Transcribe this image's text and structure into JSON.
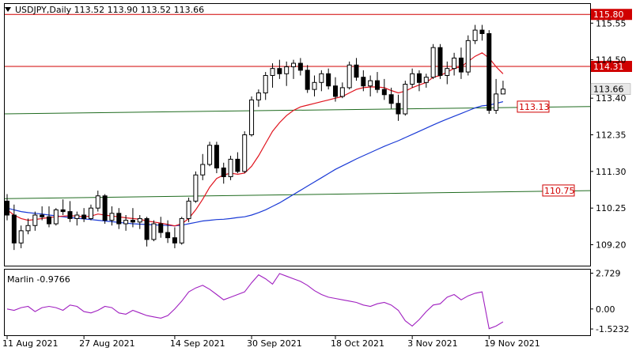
{
  "header": {
    "symbol_line": "USDJPY,Daily  113.52 113.90 113.52 113.66",
    "arrow_icon": "triangle-down-icon"
  },
  "colors": {
    "background": "#ffffff",
    "frame": "#000000",
    "red_line": "#d00000",
    "green_line": "#1f6b1f",
    "blue_ma": "#1a3ad6",
    "red_ma": "#e0141e",
    "oscillator": "#a020c0",
    "current_price_box": "#e8e8e8"
  },
  "chart_data": [
    {
      "type": "candlestick",
      "symbol": "USDJPY",
      "timeframe": "Daily",
      "ohlc_header": {
        "open": 113.52,
        "high": 113.9,
        "low": 113.52,
        "close": 113.66
      },
      "y_ticks": [
        "115.55",
        "114.50",
        "113.40",
        "112.35",
        "111.30",
        "110.25",
        "109.20"
      ],
      "x_ticks": [
        "11 Aug 2021",
        "27 Aug 2021",
        "14 Sep 2021",
        "30 Sep 2021",
        "18 Oct 2021",
        "3 Nov 2021",
        "19 Nov 2021"
      ],
      "ylim": [
        108.6,
        116.1
      ],
      "horizontal_levels": [
        {
          "value": 115.8,
          "label": "115.80"
        },
        {
          "value": 114.31,
          "label": "114.31"
        }
      ],
      "sloped_levels": [
        {
          "label": "113.13",
          "start": 112.95,
          "end": 113.16
        },
        {
          "label": "110.75",
          "start": 110.52,
          "end": 110.75
        }
      ],
      "current_price": "113.66",
      "candles": [
        [
          110.45,
          110.65,
          109.9,
          110.05
        ],
        [
          110.05,
          110.35,
          109.05,
          109.25
        ],
        [
          109.25,
          109.75,
          109.1,
          109.6
        ],
        [
          109.6,
          109.95,
          109.5,
          109.75
        ],
        [
          109.75,
          110.15,
          109.6,
          110.05
        ],
        [
          110.05,
          110.3,
          109.9,
          110.0
        ],
        [
          110.0,
          110.3,
          109.7,
          109.8
        ],
        [
          109.8,
          110.25,
          109.75,
          110.2
        ],
        [
          110.2,
          110.5,
          110.05,
          110.15
        ],
        [
          110.15,
          110.45,
          109.85,
          109.95
        ],
        [
          109.95,
          110.15,
          109.75,
          110.05
        ],
        [
          110.05,
          110.25,
          109.85,
          109.95
        ],
        [
          109.95,
          110.35,
          109.9,
          110.25
        ],
        [
          110.25,
          110.75,
          110.15,
          110.6
        ],
        [
          110.6,
          110.65,
          109.8,
          109.9
        ],
        [
          109.9,
          110.3,
          109.75,
          110.1
        ],
        [
          110.1,
          110.25,
          109.65,
          109.8
        ],
        [
          109.8,
          110.05,
          109.6,
          109.9
        ],
        [
          109.9,
          110.25,
          109.7,
          109.85
        ],
        [
          109.85,
          110.05,
          109.65,
          109.95
        ],
        [
          109.95,
          110.0,
          109.15,
          109.35
        ],
        [
          109.35,
          109.9,
          109.3,
          109.8
        ],
        [
          109.8,
          110.0,
          109.4,
          109.55
        ],
        [
          109.55,
          109.9,
          109.25,
          109.4
        ],
        [
          109.4,
          109.7,
          109.1,
          109.25
        ],
        [
          109.25,
          110.0,
          109.2,
          109.95
        ],
        [
          109.95,
          110.55,
          109.85,
          110.45
        ],
        [
          110.45,
          111.3,
          110.4,
          111.2
        ],
        [
          111.2,
          111.8,
          111.05,
          111.5
        ],
        [
          111.5,
          112.15,
          111.45,
          112.05
        ],
        [
          112.05,
          112.15,
          111.25,
          111.4
        ],
        [
          111.4,
          111.55,
          110.95,
          111.15
        ],
        [
          111.15,
          111.75,
          111.05,
          111.65
        ],
        [
          111.65,
          111.85,
          111.25,
          111.3
        ],
        [
          111.3,
          112.45,
          111.25,
          112.35
        ],
        [
          112.35,
          113.45,
          112.3,
          113.35
        ],
        [
          113.35,
          113.65,
          113.15,
          113.55
        ],
        [
          113.55,
          114.15,
          113.35,
          114.05
        ],
        [
          114.05,
          114.4,
          113.7,
          114.25
        ],
        [
          114.25,
          114.5,
          113.95,
          114.1
        ],
        [
          114.1,
          114.45,
          113.75,
          114.3
        ],
        [
          114.3,
          114.5,
          113.95,
          114.4
        ],
        [
          114.4,
          114.55,
          114.05,
          114.2
        ],
        [
          114.2,
          114.35,
          113.55,
          113.65
        ],
        [
          113.65,
          114.05,
          113.45,
          113.85
        ],
        [
          113.85,
          114.2,
          113.6,
          114.1
        ],
        [
          114.1,
          114.25,
          113.65,
          113.75
        ],
        [
          113.75,
          114.0,
          113.3,
          113.45
        ],
        [
          113.45,
          113.85,
          113.4,
          113.7
        ],
        [
          113.7,
          114.45,
          113.65,
          114.35
        ],
        [
          114.35,
          114.55,
          113.9,
          114.0
        ],
        [
          114.0,
          114.2,
          113.6,
          113.75
        ],
        [
          113.75,
          114.05,
          113.45,
          113.9
        ],
        [
          113.9,
          114.15,
          113.55,
          113.65
        ],
        [
          113.65,
          113.95,
          113.35,
          113.5
        ],
        [
          113.5,
          113.7,
          113.1,
          113.25
        ],
        [
          113.25,
          113.5,
          112.75,
          112.95
        ],
        [
          112.95,
          113.9,
          112.9,
          113.8
        ],
        [
          113.8,
          114.25,
          113.7,
          114.1
        ],
        [
          114.1,
          114.2,
          113.6,
          113.85
        ],
        [
          113.85,
          114.1,
          113.7,
          114.0
        ],
        [
          114.0,
          114.95,
          113.95,
          114.85
        ],
        [
          114.85,
          114.95,
          113.95,
          114.05
        ],
        [
          114.05,
          114.45,
          113.8,
          114.25
        ],
        [
          114.25,
          114.7,
          114.05,
          114.55
        ],
        [
          114.55,
          114.85,
          113.95,
          114.15
        ],
        [
          114.15,
          115.2,
          114.05,
          115.05
        ],
        [
          115.05,
          115.5,
          114.95,
          115.35
        ],
        [
          115.35,
          115.5,
          115.05,
          115.25
        ],
        [
          115.25,
          115.35,
          112.95,
          113.05
        ],
        [
          113.05,
          113.95,
          112.95,
          113.52
        ],
        [
          113.52,
          113.9,
          113.52,
          113.66
        ]
      ],
      "ma_red": [
        110.2,
        110.05,
        109.95,
        109.9,
        109.92,
        109.95,
        109.98,
        110.0,
        110.02,
        110.03,
        110.02,
        110.0,
        110.02,
        110.08,
        110.05,
        110.02,
        110.0,
        109.97,
        109.95,
        109.93,
        109.88,
        109.85,
        109.82,
        109.78,
        109.74,
        109.8,
        109.95,
        110.2,
        110.5,
        110.85,
        111.1,
        111.2,
        111.25,
        111.22,
        111.25,
        111.45,
        111.75,
        112.1,
        112.45,
        112.7,
        112.9,
        113.05,
        113.15,
        113.2,
        113.25,
        113.3,
        113.35,
        113.4,
        113.45,
        113.55,
        113.65,
        113.7,
        113.72,
        113.72,
        113.7,
        113.62,
        113.55,
        113.6,
        113.7,
        113.78,
        113.85,
        114.0,
        114.05,
        114.15,
        114.25,
        114.3,
        114.45,
        114.6,
        114.7,
        114.55,
        114.3,
        114.1
      ],
      "ma_blue": [
        110.25,
        110.2,
        110.15,
        110.12,
        110.1,
        110.08,
        110.05,
        110.03,
        110.0,
        109.98,
        109.96,
        109.94,
        109.92,
        109.9,
        109.88,
        109.86,
        109.84,
        109.82,
        109.8,
        109.79,
        109.78,
        109.77,
        109.76,
        109.75,
        109.74,
        109.76,
        109.8,
        109.84,
        109.88,
        109.9,
        109.92,
        109.93,
        109.95,
        109.98,
        110.0,
        110.05,
        110.12,
        110.2,
        110.3,
        110.4,
        110.52,
        110.64,
        110.76,
        110.88,
        111.0,
        111.12,
        111.24,
        111.36,
        111.46,
        111.56,
        111.66,
        111.75,
        111.84,
        111.93,
        112.02,
        112.1,
        112.18,
        112.27,
        112.36,
        112.45,
        112.54,
        112.63,
        112.72,
        112.8,
        112.88,
        112.96,
        113.04,
        113.12,
        113.18,
        113.2,
        113.25,
        113.3
      ]
    },
    {
      "type": "line",
      "name": "Marlin",
      "label": "Marlin -0.9766",
      "y_ticks": [
        "2.729",
        "0.00",
        "-1.5232"
      ],
      "ylim": [
        -2.0,
        3.0
      ],
      "values": [
        0.0,
        -0.1,
        0.1,
        0.2,
        -0.2,
        0.1,
        0.2,
        0.1,
        -0.1,
        0.3,
        0.2,
        -0.2,
        -0.3,
        -0.1,
        0.2,
        0.1,
        -0.3,
        -0.4,
        -0.1,
        -0.3,
        -0.5,
        -0.6,
        -0.7,
        -0.5,
        0.0,
        0.6,
        1.3,
        1.6,
        1.8,
        1.5,
        1.1,
        0.7,
        0.9,
        1.1,
        1.3,
        2.0,
        2.6,
        2.3,
        1.9,
        2.7,
        2.5,
        2.3,
        2.1,
        1.8,
        1.4,
        1.1,
        0.9,
        0.8,
        0.7,
        0.6,
        0.5,
        0.3,
        0.2,
        0.4,
        0.5,
        0.3,
        -0.1,
        -0.9,
        -1.3,
        -0.8,
        -0.2,
        0.3,
        0.4,
        0.9,
        1.1,
        0.7,
        1.0,
        1.2,
        1.3,
        -1.5,
        -1.3,
        -0.98
      ]
    }
  ]
}
